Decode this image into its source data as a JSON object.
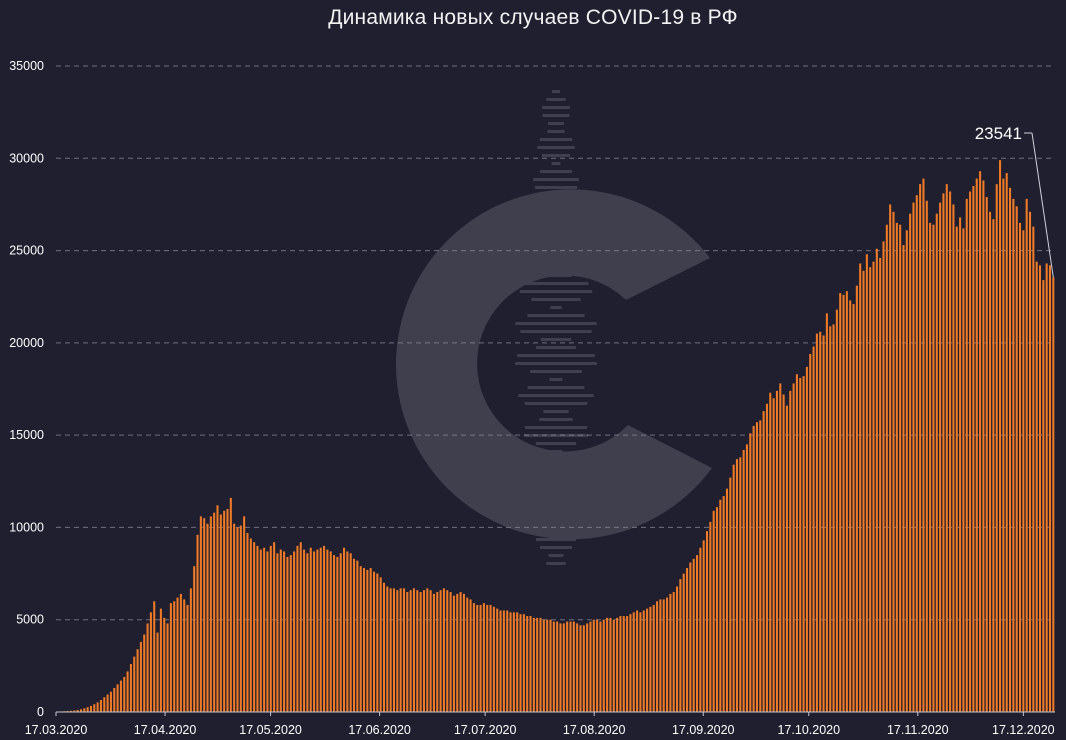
{
  "chart_data": {
    "type": "bar",
    "title": "Динамика новых случаев COVID-19 в РФ",
    "xlabel": "",
    "ylabel": "",
    "x_start": "17.03.2020",
    "x_end": "26.12.2020",
    "ylim": [
      0,
      35000
    ],
    "y_ticks": [
      0,
      5000,
      10000,
      15000,
      20000,
      25000,
      30000,
      35000
    ],
    "x_tick_labels": [
      "17.03.2020",
      "17.04.2020",
      "17.05.2020",
      "17.06.2020",
      "17.07.2020",
      "17.08.2020",
      "17.09.2020",
      "17.10.2020",
      "17.11.2020",
      "17.12.2020"
    ],
    "grid": "horizontal-dashed",
    "bar_color": "#f07a26",
    "background_color": "#1f1f2f",
    "annotation": {
      "text": "23541",
      "value": 23541,
      "target": "last"
    },
    "values": [
      20,
      30,
      40,
      50,
      60,
      80,
      110,
      150,
      200,
      260,
      330,
      420,
      520,
      650,
      800,
      950,
      1100,
      1300,
      1500,
      1700,
      1900,
      2200,
      2600,
      3000,
      3400,
      3800,
      4200,
      4800,
      5400,
      6000,
      4300,
      5600,
      5100,
      4800,
      5900,
      6000,
      6200,
      6400,
      6100,
      5800,
      6700,
      7900,
      9600,
      10600,
      10500,
      10200,
      10600,
      10800,
      11200,
      10700,
      10900,
      11000,
      11600,
      10200,
      10000,
      10100,
      10600,
      9700,
      9400,
      9200,
      9000,
      8800,
      8900,
      8700,
      9000,
      9200,
      8600,
      8800,
      8700,
      8400,
      8500,
      8700,
      9000,
      9200,
      8800,
      8600,
      8900,
      8700,
      8800,
      8900,
      9000,
      8800,
      8700,
      8500,
      8400,
      8600,
      8900,
      8700,
      8600,
      8300,
      8200,
      7900,
      7800,
      7700,
      7800,
      7600,
      7500,
      7300,
      7000,
      6800,
      6700,
      6700,
      6600,
      6700,
      6700,
      6500,
      6600,
      6700,
      6600,
      6500,
      6600,
      6700,
      6600,
      6400,
      6500,
      6600,
      6700,
      6600,
      6500,
      6300,
      6400,
      6500,
      6400,
      6200,
      6100,
      5900,
      5800,
      5800,
      5900,
      5800,
      5800,
      5700,
      5600,
      5500,
      5500,
      5500,
      5400,
      5400,
      5400,
      5300,
      5300,
      5200,
      5200,
      5100,
      5100,
      5100,
      5000,
      5000,
      5000,
      4900,
      4900,
      4800,
      4800,
      4900,
      4900,
      4900,
      4800,
      4700,
      4700,
      4800,
      4900,
      5000,
      5000,
      4900,
      5000,
      5100,
      5100,
      5000,
      5100,
      5200,
      5200,
      5200,
      5300,
      5400,
      5500,
      5400,
      5500,
      5600,
      5700,
      5800,
      6000,
      6100,
      6100,
      6200,
      6400,
      6500,
      6800,
      7200,
      7500,
      7800,
      8100,
      8300,
      8500,
      8900,
      9300,
      9800,
      10300,
      10900,
      11100,
      11500,
      11700,
      12100,
      12700,
      13400,
      13700,
      13800,
      14200,
      14500,
      15100,
      15500,
      15700,
      15800,
      16300,
      16700,
      17300,
      17000,
      17400,
      17800,
      17200,
      16600,
      17400,
      17800,
      18300,
      18100,
      18200,
      18700,
      19400,
      19800,
      20500,
      20600,
      20400,
      21600,
      20900,
      21000,
      21800,
      22700,
      22600,
      22800,
      22300,
      22100,
      23100,
      24300,
      23900,
      24800,
      24100,
      24400,
      25100,
      24600,
      25500,
      26400,
      27500,
      27100,
      26500,
      26400,
      25300,
      26100,
      27000,
      27600,
      28000,
      28600,
      28900,
      27700,
      26500,
      26400,
      27000,
      27600,
      28100,
      28600,
      28200,
      27500,
      26300,
      26800,
      26200,
      27800,
      28200,
      28500,
      28900,
      29300,
      28800,
      27900,
      27100,
      26700,
      28600,
      29900,
      28900,
      29200,
      28400,
      27800,
      27400,
      26500,
      26100,
      27800,
      27100,
      26300,
      24400,
      24200,
      23400,
      24300,
      24200,
      23541
    ]
  }
}
